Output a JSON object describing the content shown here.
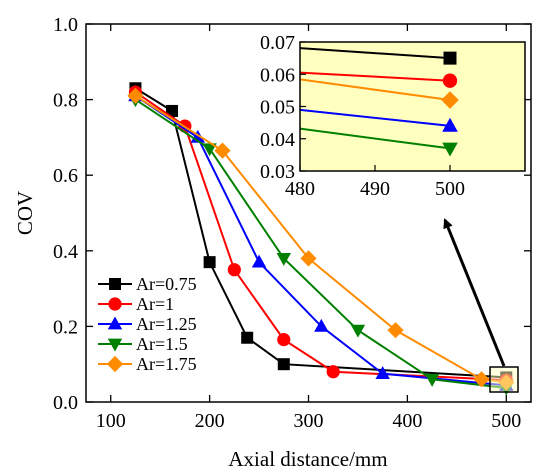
{
  "chart_data": {
    "type": "line",
    "title": "",
    "xlabel": "Axial distance/mm",
    "ylabel": "COV",
    "xlim": [
      75,
      525
    ],
    "ylim": [
      0,
      1.0
    ],
    "xticks": [
      100,
      200,
      300,
      400,
      500
    ],
    "yticks": [
      0,
      0.2,
      0.4,
      0.6,
      0.8,
      1.0
    ],
    "legend_position": "bottom-left",
    "series": [
      {
        "name": "Ar=0.75",
        "color": "#000000",
        "marker": "square",
        "x": [
          125,
          162,
          200,
          238,
          275,
          500
        ],
        "y": [
          0.83,
          0.77,
          0.37,
          0.17,
          0.1,
          0.065
        ]
      },
      {
        "name": "Ar=1",
        "color": "#ff0000",
        "marker": "circle",
        "x": [
          125,
          175,
          225,
          275,
          325,
          500
        ],
        "y": [
          0.82,
          0.73,
          0.35,
          0.165,
          0.08,
          0.058
        ]
      },
      {
        "name": "Ar=1.25",
        "color": "#0000ff",
        "marker": "triangle-up",
        "x": [
          125,
          188,
          250,
          313,
          375,
          500
        ],
        "y": [
          0.81,
          0.7,
          0.37,
          0.2,
          0.075,
          0.044
        ]
      },
      {
        "name": "Ar=1.5",
        "color": "#008000",
        "marker": "triangle-down",
        "x": [
          125,
          200,
          275,
          350,
          425,
          500
        ],
        "y": [
          0.8,
          0.67,
          0.38,
          0.19,
          0.06,
          0.037
        ]
      },
      {
        "name": "Ar=1.75",
        "color": "#ff8c00",
        "marker": "diamond",
        "x": [
          125,
          213,
          300,
          388,
          475,
          500
        ],
        "y": [
          0.81,
          0.665,
          0.38,
          0.19,
          0.06,
          0.052
        ]
      }
    ],
    "inset": {
      "background": "#ffffc0",
      "xlim": [
        480,
        510
      ],
      "ylim": [
        0.03,
        0.07
      ],
      "xticks": [
        480,
        490,
        500
      ],
      "yticks": [
        0.03,
        0.04,
        0.05,
        0.06,
        0.07
      ],
      "ytick_labels": [
        "0.03",
        "0.04",
        "0.05",
        "0.06",
        "0.07"
      ]
    }
  }
}
